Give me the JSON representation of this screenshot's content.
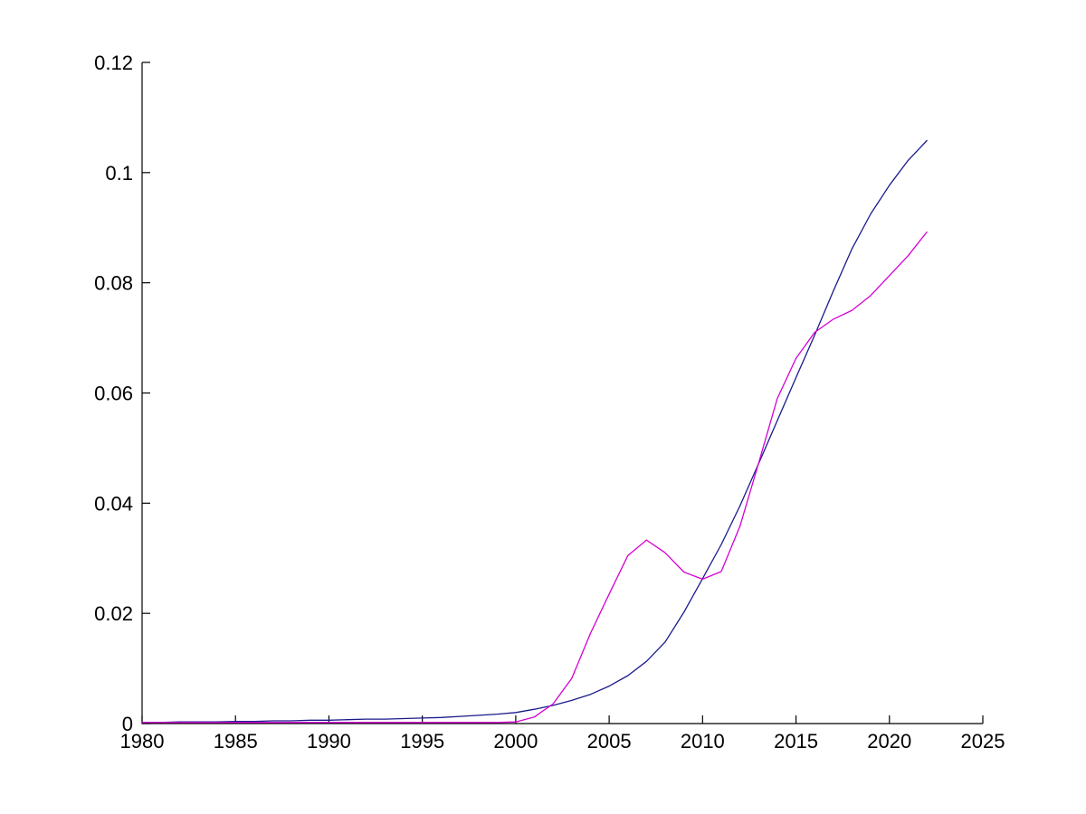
{
  "figure": {
    "background": "#ffffff",
    "axis_color": "#000000",
    "title": ""
  },
  "chart_data": {
    "type": "line",
    "title": "",
    "xlabel": "",
    "ylabel": "",
    "xlim": [
      1980,
      2025
    ],
    "ylim": [
      0,
      0.12
    ],
    "grid": false,
    "legend": "none",
    "box": false,
    "x_ticks": {
      "values": [
        1980,
        1985,
        1990,
        1995,
        2000,
        2005,
        2010,
        2015,
        2020,
        2025
      ],
      "labels": [
        "1980",
        "1985",
        "1990",
        "1995",
        "2000",
        "2005",
        "2010",
        "2015",
        "2020",
        "2025"
      ]
    },
    "y_ticks": {
      "values": [
        0,
        0.02,
        0.04,
        0.06,
        0.08,
        0.1,
        0.12
      ],
      "labels": [
        "0",
        "0.02",
        "0.04",
        "0.06",
        "0.08",
        "0.1",
        "0.12"
      ]
    },
    "x": [
      1980,
      1981,
      1982,
      1983,
      1984,
      1985,
      1986,
      1987,
      1988,
      1989,
      1990,
      1991,
      1992,
      1993,
      1994,
      1995,
      1996,
      1997,
      1998,
      1999,
      2000,
      2001,
      2002,
      2003,
      2004,
      2005,
      2006,
      2007,
      2008,
      2009,
      2010,
      2011,
      2012,
      2013,
      2014,
      2015,
      2016,
      2017,
      2018,
      2019,
      2020,
      2021,
      2022
    ],
    "series": [
      {
        "name": "dark-blue-smooth-curve",
        "color": "#1A1A8C",
        "line_width": 1.3,
        "values": [
          0.0002,
          0.0002,
          0.0003,
          0.0003,
          0.0003,
          0.0004,
          0.0004,
          0.0005,
          0.0005,
          0.0006,
          0.0006,
          0.0007,
          0.0008,
          0.0008,
          0.0009,
          0.001,
          0.0011,
          0.0013,
          0.0015,
          0.0017,
          0.002,
          0.0026,
          0.0033,
          0.0042,
          0.0053,
          0.0068,
          0.0087,
          0.0113,
          0.0148,
          0.0202,
          0.0263,
          0.0325,
          0.0395,
          0.0472,
          0.055,
          0.0628,
          0.0705,
          0.0785,
          0.0862,
          0.0925,
          0.0977,
          0.1022,
          0.1058
        ]
      },
      {
        "name": "magenta-jagged-curve",
        "color": "#D400D4",
        "line_width": 1.3,
        "values": [
          0.0002,
          0.0002,
          0.0002,
          0.0002,
          0.0002,
          0.0002,
          0.0002,
          0.0002,
          0.0002,
          0.0002,
          0.0002,
          0.0002,
          0.0002,
          0.0002,
          0.0002,
          0.0002,
          0.0002,
          0.0002,
          0.0002,
          0.0002,
          0.0003,
          0.0012,
          0.0036,
          0.0082,
          0.0164,
          0.0235,
          0.0305,
          0.0333,
          0.031,
          0.0275,
          0.0262,
          0.0276,
          0.0358,
          0.0473,
          0.059,
          0.0663,
          0.071,
          0.0734,
          0.075,
          0.0777,
          0.0813,
          0.0849,
          0.0892
        ]
      }
    ]
  }
}
